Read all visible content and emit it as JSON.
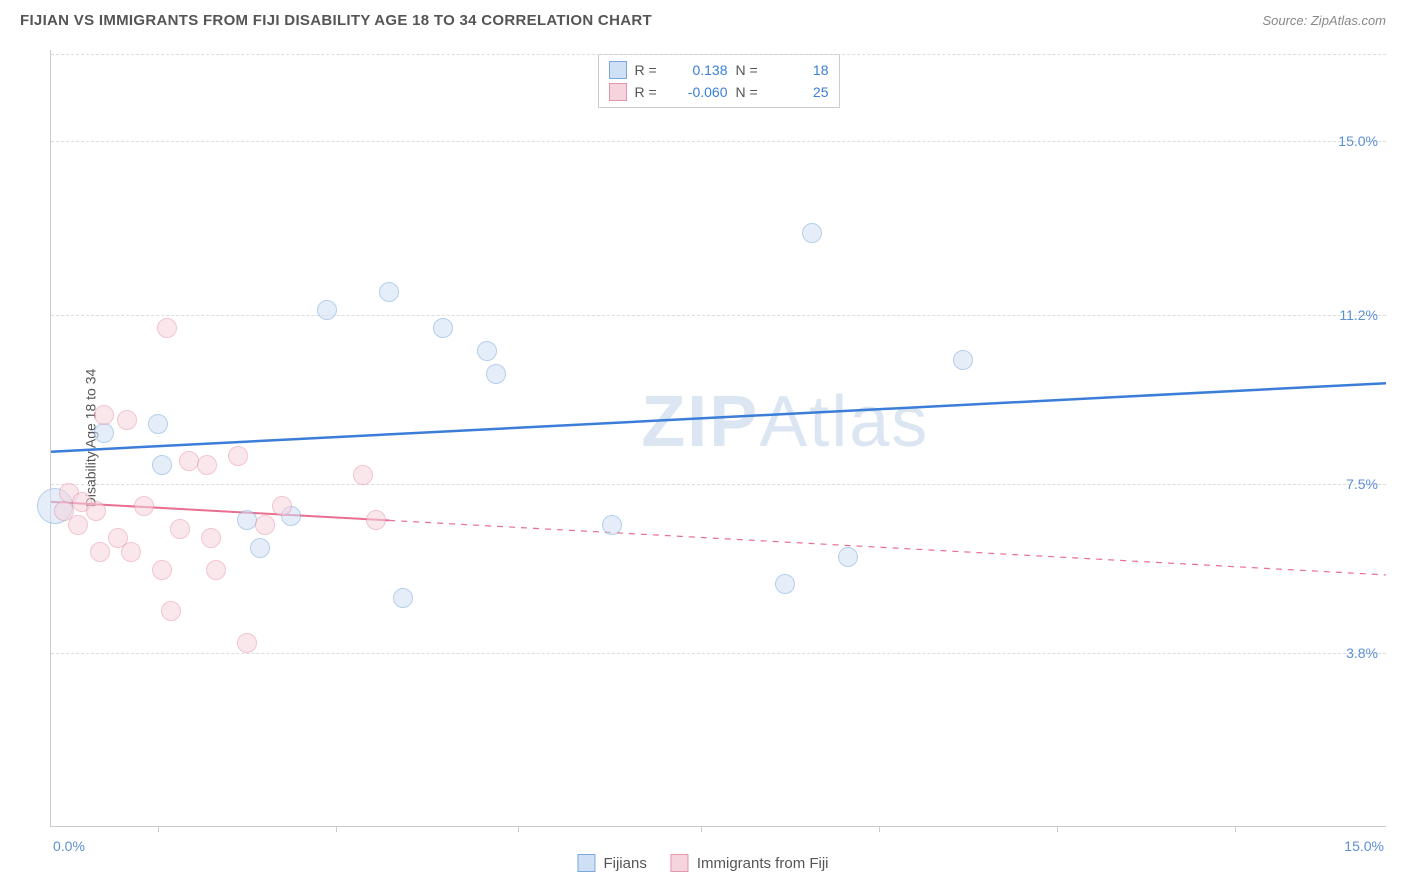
{
  "title": "FIJIAN VS IMMIGRANTS FROM FIJI DISABILITY AGE 18 TO 34 CORRELATION CHART",
  "source": "Source: ZipAtlas.com",
  "yaxis_title": "Disability Age 18 to 34",
  "watermark_bold": "ZIP",
  "watermark_light": "Atlas",
  "chart": {
    "type": "scatter",
    "background_color": "#ffffff",
    "grid_color": "#dddddd",
    "axis_color": "#cccccc",
    "text_color": "#555555",
    "label_color": "#5b8fd6",
    "title_fontsize": 15,
    "label_fontsize": 14,
    "xlim": [
      0,
      15
    ],
    "ylim": [
      0,
      17
    ],
    "yticks": [
      {
        "value": 3.8,
        "label": "3.8%"
      },
      {
        "value": 7.5,
        "label": "7.5%"
      },
      {
        "value": 11.2,
        "label": "11.2%"
      },
      {
        "value": 15.0,
        "label": "15.0%"
      }
    ],
    "xticks_positions": [
      1.2,
      3.2,
      5.25,
      7.3,
      9.3,
      11.3,
      13.3
    ],
    "xaxis_left_label": "0.0%",
    "xaxis_right_label": "15.0%",
    "marker_radius": 10,
    "marker_stroke_width": 1.5,
    "series": [
      {
        "name": "Fijians",
        "fill": "#cfe0f4",
        "stroke": "#7aa8de",
        "fill_opacity": 0.55,
        "R_label": "R =",
        "R_value": "0.138",
        "N_label": "N =",
        "N_value": "18",
        "trend": {
          "y_at_x0": 8.2,
          "y_at_xmax": 9.7,
          "color": "#3b7dd8",
          "width": 2.5,
          "dash_from_x": null
        },
        "points": [
          {
            "x": 0.05,
            "y": 7.0,
            "r": 18
          },
          {
            "x": 0.6,
            "y": 8.6
          },
          {
            "x": 1.2,
            "y": 8.8
          },
          {
            "x": 1.25,
            "y": 7.9
          },
          {
            "x": 2.2,
            "y": 6.7
          },
          {
            "x": 2.35,
            "y": 6.1
          },
          {
            "x": 2.7,
            "y": 6.8
          },
          {
            "x": 3.1,
            "y": 11.3
          },
          {
            "x": 3.8,
            "y": 11.7
          },
          {
            "x": 3.95,
            "y": 5.0
          },
          {
            "x": 4.4,
            "y": 10.9
          },
          {
            "x": 4.9,
            "y": 10.4
          },
          {
            "x": 5.0,
            "y": 9.9
          },
          {
            "x": 6.3,
            "y": 6.6
          },
          {
            "x": 8.25,
            "y": 5.3
          },
          {
            "x": 8.55,
            "y": 13.0
          },
          {
            "x": 8.95,
            "y": 5.9
          },
          {
            "x": 10.25,
            "y": 10.2
          }
        ]
      },
      {
        "name": "Immigrants from Fiji",
        "fill": "#f6d4dd",
        "stroke": "#e695ab",
        "fill_opacity": 0.55,
        "R_label": "R =",
        "R_value": "-0.060",
        "N_label": "N =",
        "N_value": "25",
        "trend": {
          "y_at_x0": 7.1,
          "y_at_xmax": 5.5,
          "color": "#e86f91",
          "width": 2,
          "dash_from_x": 3.8
        },
        "points": [
          {
            "x": 0.15,
            "y": 6.9
          },
          {
            "x": 0.2,
            "y": 7.3
          },
          {
            "x": 0.3,
            "y": 6.6
          },
          {
            "x": 0.35,
            "y": 7.1
          },
          {
            "x": 0.5,
            "y": 6.9
          },
          {
            "x": 0.55,
            "y": 6.0
          },
          {
            "x": 0.6,
            "y": 9.0
          },
          {
            "x": 0.75,
            "y": 6.3
          },
          {
            "x": 0.85,
            "y": 8.9
          },
          {
            "x": 0.9,
            "y": 6.0
          },
          {
            "x": 1.05,
            "y": 7.0
          },
          {
            "x": 1.25,
            "y": 5.6
          },
          {
            "x": 1.3,
            "y": 10.9
          },
          {
            "x": 1.35,
            "y": 4.7
          },
          {
            "x": 1.45,
            "y": 6.5
          },
          {
            "x": 1.55,
            "y": 8.0
          },
          {
            "x": 1.75,
            "y": 7.9
          },
          {
            "x": 1.8,
            "y": 6.3
          },
          {
            "x": 1.85,
            "y": 5.6
          },
          {
            "x": 2.1,
            "y": 8.1
          },
          {
            "x": 2.2,
            "y": 4.0
          },
          {
            "x": 2.4,
            "y": 6.6
          },
          {
            "x": 2.6,
            "y": 7.0
          },
          {
            "x": 3.5,
            "y": 7.7
          },
          {
            "x": 3.65,
            "y": 6.7
          }
        ]
      }
    ]
  },
  "legend_bottom": [
    {
      "label": "Fijians",
      "fill": "#cfe0f4",
      "stroke": "#7aa8de"
    },
    {
      "label": "Immigrants from Fiji",
      "fill": "#f6d4dd",
      "stroke": "#e695ab"
    }
  ]
}
